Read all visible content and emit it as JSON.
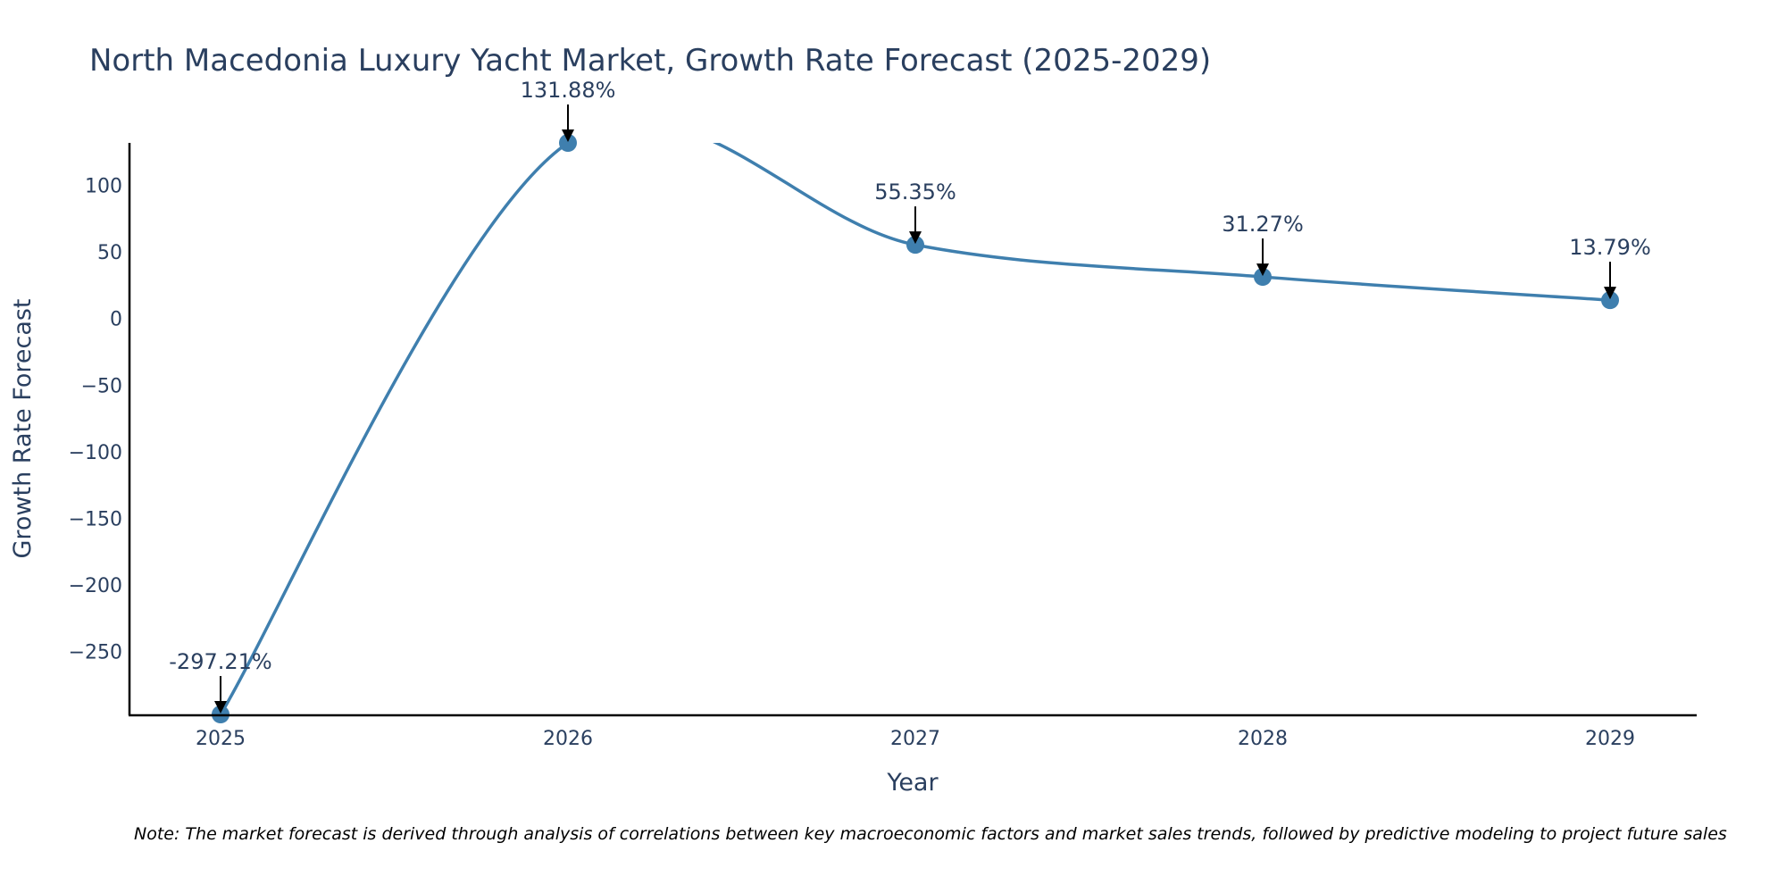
{
  "chart_data": {
    "type": "line",
    "title": "North Macedonia Luxury Yacht Market, Growth Rate Forecast (2025-2029)",
    "xlabel": "Year",
    "ylabel": "Growth Rate Forecast",
    "categories": [
      "2025",
      "2026",
      "2027",
      "2028",
      "2029"
    ],
    "series": [
      {
        "values": [
          -297.21,
          131.88,
          55.35,
          31.27,
          13.79
        ]
      }
    ],
    "data_labels": [
      "-297.21%",
      "131.88%",
      "55.35%",
      "31.27%",
      "13.79%"
    ],
    "y_ticks": [
      100,
      50,
      0,
      -50,
      -100,
      -150,
      -200,
      -250
    ],
    "y_tick_labels": [
      "100",
      "50",
      "0",
      "−50",
      "−100",
      "−150",
      "−200",
      "−250"
    ],
    "ylim": [
      -297.21,
      131.88
    ],
    "line_shape": "spline",
    "grid": false,
    "line_color": "#3f7fae",
    "note": "Note: The market forecast is derived through analysis of correlations between key macroeconomic factors and market sales trends, followed by predictive modeling to project future sales"
  }
}
